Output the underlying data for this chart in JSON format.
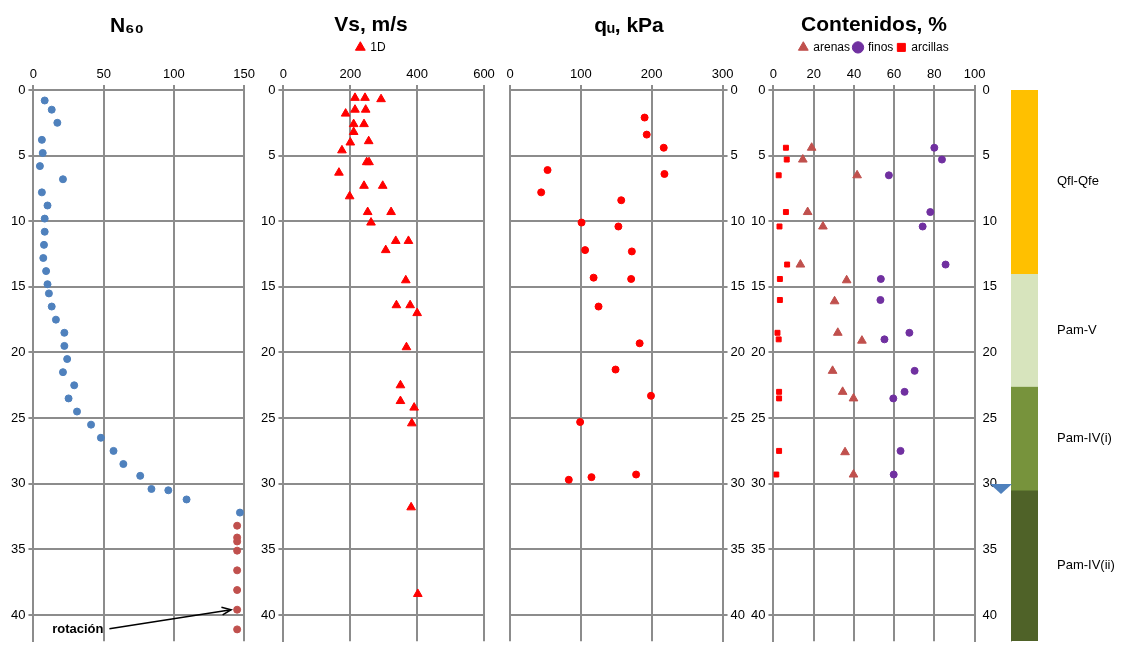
{
  "chart_data": [
    {
      "type": "scatter",
      "title": "N₆₀",
      "xlim": [
        0,
        150
      ],
      "xticks": [
        0,
        50,
        100,
        150
      ],
      "ylim": [
        42,
        0
      ],
      "yticks": [
        0,
        5,
        10,
        15,
        20,
        25,
        30,
        35,
        40
      ],
      "grid": true,
      "legend": false,
      "series": [
        {
          "color": "#4f81bd",
          "marker": "circle",
          "x": [
            8,
            13,
            17,
            6,
            6.6,
            4.6,
            21,
            6,
            10,
            8,
            8,
            7.5,
            7,
            9,
            10,
            11,
            13,
            16,
            22,
            22,
            24,
            21,
            29,
            25,
            31,
            41,
            48,
            57,
            64,
            76,
            84,
            96,
            109,
            147
          ],
          "values": [
            0.8,
            1.5,
            2.5,
            3.8,
            4.8,
            5.8,
            6.8,
            7.8,
            8.8,
            9.8,
            10.8,
            11.8,
            12.8,
            13.8,
            14.8,
            15.5,
            16.5,
            17.5,
            18.5,
            19.5,
            20.5,
            21.5,
            22.5,
            23.5,
            24.5,
            25.5,
            26.5,
            27.5,
            28.5,
            29.4,
            30.4,
            30.5,
            31.2,
            32.2
          ]
        },
        {
          "color": "#c0504d",
          "marker": "circle",
          "x": [
            145,
            145,
            145,
            145,
            145,
            145,
            145,
            145
          ],
          "values": [
            33.2,
            34.1,
            34.4,
            35.1,
            36.6,
            38.1,
            39.6,
            41.1
          ]
        }
      ],
      "annotations": [
        {
          "text": "rotación",
          "x": 145,
          "y": 39.6
        }
      ]
    },
    {
      "type": "scatter",
      "title": "Vs, m/s",
      "xlim": [
        0,
        600
      ],
      "xticks": [
        0,
        200,
        400,
        600
      ],
      "ylim": [
        42,
        0
      ],
      "yticks": [
        0,
        5,
        10,
        15,
        20,
        25,
        30,
        35,
        40
      ],
      "grid": true,
      "legend": "top",
      "series": [
        {
          "name": "1D",
          "color": "#ff0000",
          "marker": "triangle",
          "x": [
            214,
            244,
            292,
            214,
            246,
            186,
            210,
            241,
            210,
            200,
            255,
            175,
            249,
            256,
            166,
            241,
            297,
            198,
            252,
            322,
            262,
            336,
            374,
            306,
            366,
            338,
            379,
            400,
            368,
            350,
            350,
            391,
            384,
            382,
            402
          ],
          "values": [
            0.6,
            0.6,
            0.7,
            1.5,
            1.5,
            1.8,
            2.6,
            2.6,
            3.2,
            4.0,
            3.9,
            4.6,
            5.5,
            5.5,
            6.3,
            7.3,
            7.3,
            8.1,
            9.3,
            9.3,
            10.1,
            11.5,
            11.5,
            12.2,
            14.5,
            16.4,
            16.4,
            17.0,
            19.6,
            22.5,
            23.7,
            24.2,
            25.4,
            31.8,
            38.4
          ]
        }
      ]
    },
    {
      "type": "scatter",
      "title": "qᵤ, kPa",
      "xlim": [
        0,
        300
      ],
      "xticks": [
        0,
        100,
        200,
        300
      ],
      "y2lim": [
        42,
        0
      ],
      "y2ticks": [
        0,
        5,
        10,
        15,
        20,
        25,
        30,
        35,
        40
      ],
      "grid": true,
      "legend": false,
      "series": [
        {
          "color": "#ff0000",
          "marker": "circle",
          "axis": "y2",
          "x": [
            190,
            193,
            217,
            53,
            218,
            44,
            157,
            101,
            153,
            106,
            172,
            118,
            171,
            125,
            183,
            149,
            199,
            99,
            178,
            115,
            83
          ],
          "values": [
            2.1,
            3.4,
            4.4,
            6.1,
            6.4,
            7.8,
            8.4,
            10.1,
            10.4,
            12.2,
            12.3,
            14.3,
            14.4,
            16.5,
            19.3,
            21.3,
            23.3,
            25.3,
            29.3,
            29.5,
            29.7
          ]
        }
      ]
    },
    {
      "type": "scatter",
      "title": "Contenidos, %",
      "xlim": [
        0,
        100
      ],
      "xticks": [
        0,
        20,
        40,
        60,
        80,
        100
      ],
      "ylim": [
        42,
        0
      ],
      "yticks": [
        0,
        5,
        10,
        15,
        20,
        25,
        30,
        35,
        40
      ],
      "y2lim": [
        42,
        0
      ],
      "y2ticks": [
        0,
        5,
        10,
        15,
        20,
        25,
        30,
        35,
        40
      ],
      "grid": true,
      "legend": "top",
      "series": [
        {
          "name": "arenas",
          "color": "#c0504d",
          "marker": "triangle",
          "x": [
            19,
            14.6,
            41.6,
            17,
            24.6,
            13.4,
            36.4,
            30.4,
            32,
            44,
            29.4,
            34.4,
            39.8,
            35.6,
            39.8
          ],
          "values": [
            4.4,
            5.3,
            6.5,
            9.3,
            10.4,
            13.3,
            14.5,
            16.1,
            18.5,
            19.1,
            21.4,
            23.0,
            23.5,
            27.6,
            29.3
          ]
        },
        {
          "name": "finos",
          "color": "#7030a0",
          "marker": "circle",
          "x": [
            80,
            83.8,
            57.4,
            78,
            74.2,
            85.6,
            53.4,
            53.2,
            67.6,
            55.2,
            70.2,
            65.2,
            59.6,
            63.2,
            59.8
          ],
          "values": [
            4.4,
            5.3,
            6.5,
            9.3,
            10.4,
            13.3,
            14.4,
            16.0,
            18.5,
            19.0,
            21.4,
            23.0,
            23.5,
            27.5,
            29.3
          ]
        },
        {
          "name": "arcillas",
          "color": "#ff0000",
          "marker": "square",
          "x": [
            6.2,
            6.6,
            2.6,
            6.2,
            3,
            6.8,
            3.2,
            3.2,
            2,
            2.6,
            2.8,
            2.8,
            2.8,
            1.4
          ],
          "values": [
            4.4,
            5.3,
            6.5,
            9.3,
            10.4,
            13.3,
            14.4,
            16.0,
            18.5,
            19.0,
            23.0,
            23.5,
            27.5,
            29.3
          ]
        }
      ]
    },
    {
      "type": "bar",
      "stacked": true,
      "categories": [
        null
      ],
      "ylim": [
        42,
        0
      ],
      "tick_labels": false,
      "grid": false,
      "legend": false,
      "series": [
        {
          "name": "Qfl-Qfe",
          "color": "#ffc000",
          "values": [
            14
          ]
        },
        {
          "name": "Pam-V",
          "color": "#d7e4bd",
          "values": [
            8.6
          ]
        },
        {
          "name": "Pam-IV(i)",
          "color": "#77933c",
          "values": [
            7.9
          ]
        },
        {
          "name": "Pam-IV(ii)",
          "color": "#4f6228",
          "values": [
            11.5
          ]
        }
      ]
    }
  ]
}
